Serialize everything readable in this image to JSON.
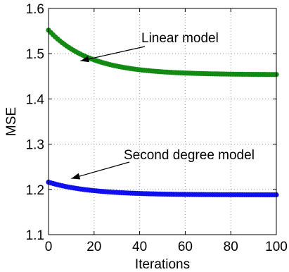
{
  "chart_data": {
    "type": "line",
    "title": "",
    "xlabel": "Iterations",
    "ylabel": "MSE",
    "xlim": [
      0,
      100
    ],
    "ylim": [
      1.1,
      1.6
    ],
    "xticks": [
      0,
      20,
      40,
      60,
      80,
      100
    ],
    "xtick_labels": [
      "0",
      "20",
      "40",
      "60",
      "80",
      "100"
    ],
    "yticks": [
      1.1,
      1.2,
      1.3,
      1.4,
      1.5,
      1.6
    ],
    "ytick_labels": [
      "1.1",
      "1.2",
      "1.3",
      "1.4",
      "1.5",
      "1.6"
    ],
    "grid": true,
    "series": [
      {
        "color": "#138a13",
        "marker": "circle",
        "start": 1.552,
        "end": 1.454,
        "curve": "decaying"
      },
      {
        "color": "#1010ee",
        "marker": "circle",
        "start": 1.216,
        "end": 1.188,
        "curve": "decaying"
      }
    ],
    "annotations": [
      {
        "text": "Linear model",
        "arrow_to": [
          14,
          1.484
        ]
      },
      {
        "text": "Second degree model",
        "arrow_to": [
          10,
          1.224
        ]
      }
    ]
  }
}
